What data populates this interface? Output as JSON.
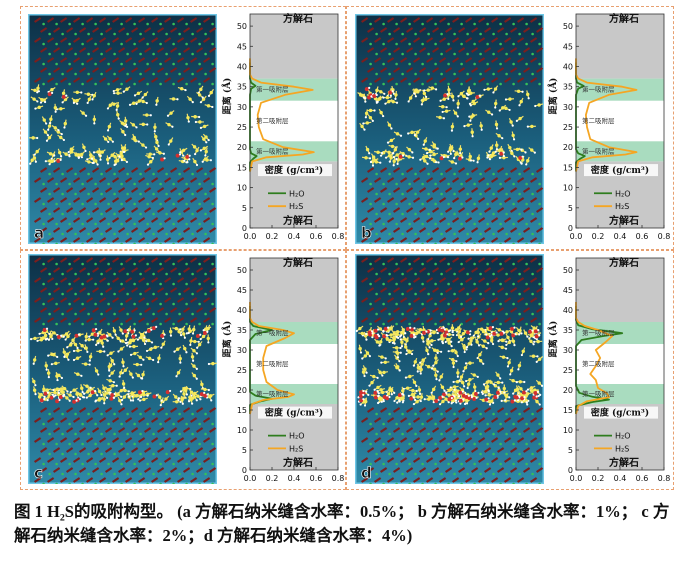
{
  "caption": "图 1 H₂S的吸附构型。 (a 方解石纳米缝含水率：0.5%； b 方解石纳米缝含水率：1%； c 方解石纳米缝含水率：2%；d 方解石纳米缝含水率：4%)",
  "colors": {
    "h2o": "#2e7d1e",
    "h2s": "#f5a623",
    "calcite_region": "#c8c8c8",
    "adsorption_band": "#a9dcbf",
    "middle_band": "#ffffff"
  },
  "labels": {
    "top_mineral": "方解石",
    "bottom_mineral": "方解石",
    "first_layer": "第一吸附层",
    "second_layer": "第二吸附层",
    "ylabel": "距离 (Å)",
    "xlabel": "密度 (g/cm³)"
  },
  "panels": [
    {
      "letter": "a"
    },
    {
      "letter": "b"
    },
    {
      "letter": "c"
    },
    {
      "letter": "d"
    }
  ],
  "chart_data": [
    {
      "type": "line",
      "panel": "a",
      "xlabel": "密度 (g/cm³)",
      "ylabel": "距离 (Å)",
      "xlim": [
        0,
        0.8
      ],
      "ylim": [
        0,
        53
      ],
      "xticks": [
        "0.0",
        "0.2",
        "0.4",
        "0.6",
        "0.8"
      ],
      "yticks": [
        "0",
        "5",
        "10",
        "15",
        "20",
        "25",
        "30",
        "35",
        "40",
        "45",
        "50"
      ],
      "regions": {
        "calcite_bottom": [
          0,
          16.5
        ],
        "calcite_top": [
          37,
          53
        ],
        "first_layer_bottom": [
          16.5,
          21.5
        ],
        "second_layer": [
          21.5,
          31.5
        ],
        "first_layer_top": [
          31.5,
          37
        ]
      },
      "series": [
        {
          "name": "H₂O",
          "points": [
            [
              0,
              14
            ],
            [
              0,
              16.3
            ],
            [
              0.03,
              17.2
            ],
            [
              0.06,
              17.8
            ],
            [
              0.01,
              18.5
            ],
            [
              0,
              19.5
            ],
            [
              0,
              33
            ],
            [
              0.01,
              34.5
            ],
            [
              0.05,
              35.2
            ],
            [
              0.01,
              36
            ],
            [
              0,
              37
            ],
            [
              0,
              41
            ]
          ]
        },
        {
          "name": "H₂S",
          "points": [
            [
              0,
              14
            ],
            [
              0.02,
              16.5
            ],
            [
              0.15,
              17.5
            ],
            [
              0.48,
              18.2
            ],
            [
              0.58,
              18.8
            ],
            [
              0.3,
              20
            ],
            [
              0.12,
              22
            ],
            [
              0.08,
              25
            ],
            [
              0.07,
              28
            ],
            [
              0.1,
              31
            ],
            [
              0.32,
              33
            ],
            [
              0.57,
              34.2
            ],
            [
              0.4,
              35
            ],
            [
              0.1,
              36
            ],
            [
              0.02,
              37
            ],
            [
              0,
              38
            ],
            [
              0,
              42
            ]
          ]
        }
      ]
    },
    {
      "type": "line",
      "panel": "b",
      "xlabel": "密度 (g/cm³)",
      "ylabel": "距离 (Å)",
      "xlim": [
        0,
        0.8
      ],
      "ylim": [
        0,
        53
      ],
      "xticks": [
        "0.0",
        "0.2",
        "0.4",
        "0.6",
        "0.8"
      ],
      "yticks": [
        "0",
        "5",
        "10",
        "15",
        "20",
        "25",
        "30",
        "35",
        "40",
        "45",
        "50"
      ],
      "regions": {
        "calcite_bottom": [
          0,
          16.5
        ],
        "calcite_top": [
          37,
          53
        ],
        "first_layer_bottom": [
          16.5,
          21.5
        ],
        "second_layer": [
          21.5,
          31.5
        ],
        "first_layer_top": [
          31.5,
          37
        ]
      },
      "series": [
        {
          "name": "H₂O",
          "points": [
            [
              0,
              14
            ],
            [
              0,
              16.3
            ],
            [
              0.04,
              17.2
            ],
            [
              0.08,
              17.8
            ],
            [
              0.02,
              18.5
            ],
            [
              0,
              19.5
            ],
            [
              0,
              33
            ],
            [
              0.02,
              34.5
            ],
            [
              0.07,
              35.2
            ],
            [
              0.01,
              36
            ],
            [
              0,
              37
            ],
            [
              0,
              41
            ]
          ]
        },
        {
          "name": "H₂S",
          "points": [
            [
              0,
              14
            ],
            [
              0.02,
              16.5
            ],
            [
              0.15,
              17.5
            ],
            [
              0.45,
              18.2
            ],
            [
              0.55,
              18.8
            ],
            [
              0.3,
              20
            ],
            [
              0.13,
              22
            ],
            [
              0.1,
              25
            ],
            [
              0.09,
              28
            ],
            [
              0.12,
              31
            ],
            [
              0.3,
              33
            ],
            [
              0.55,
              34.2
            ],
            [
              0.42,
              35
            ],
            [
              0.1,
              36
            ],
            [
              0.02,
              37
            ],
            [
              0,
              38
            ],
            [
              0,
              42
            ]
          ]
        }
      ]
    },
    {
      "type": "line",
      "panel": "c",
      "xlabel": "密度 (g/cm³)",
      "ylabel": "距离 (Å)",
      "xlim": [
        0,
        0.8
      ],
      "ylim": [
        0,
        53
      ],
      "xticks": [
        "0.0",
        "0.2",
        "0.4",
        "0.6",
        "0.8"
      ],
      "yticks": [
        "0",
        "5",
        "10",
        "15",
        "20",
        "25",
        "30",
        "35",
        "40",
        "45",
        "50"
      ],
      "regions": {
        "calcite_bottom": [
          0,
          16.5
        ],
        "calcite_top": [
          37,
          53
        ],
        "first_layer_bottom": [
          16.5,
          21.5
        ],
        "second_layer": [
          21.5,
          31.5
        ],
        "first_layer_top": [
          31.5,
          37
        ]
      },
      "series": [
        {
          "name": "H₂O",
          "points": [
            [
              0,
              14
            ],
            [
              0,
              16.3
            ],
            [
              0.1,
              17.2
            ],
            [
              0.2,
              17.8
            ],
            [
              0.05,
              18.6
            ],
            [
              0,
              19.5
            ],
            [
              0,
              32.5
            ],
            [
              0.05,
              34
            ],
            [
              0.2,
              35
            ],
            [
              0.03,
              36
            ],
            [
              0,
              37
            ],
            [
              0,
              41
            ]
          ]
        },
        {
          "name": "H₂S",
          "points": [
            [
              0,
              14
            ],
            [
              0.02,
              16.5
            ],
            [
              0.12,
              17.5
            ],
            [
              0.35,
              18.3
            ],
            [
              0.4,
              18.9
            ],
            [
              0.25,
              20
            ],
            [
              0.15,
              22
            ],
            [
              0.12,
              25
            ],
            [
              0.12,
              28
            ],
            [
              0.15,
              31
            ],
            [
              0.32,
              33
            ],
            [
              0.4,
              34.2
            ],
            [
              0.3,
              35
            ],
            [
              0.08,
              36
            ],
            [
              0.02,
              37
            ],
            [
              0,
              38
            ],
            [
              0,
              42
            ]
          ]
        }
      ]
    },
    {
      "type": "line",
      "panel": "d",
      "xlabel": "密度 (g/cm³)",
      "ylabel": "距离 (Å)",
      "xlim": [
        0,
        0.8
      ],
      "ylim": [
        0,
        53
      ],
      "xticks": [
        "0.0",
        "0.2",
        "0.4",
        "0.6",
        "0.8"
      ],
      "yticks": [
        "0",
        "5",
        "10",
        "15",
        "20",
        "25",
        "30",
        "35",
        "40",
        "45",
        "50"
      ],
      "regions": {
        "calcite_bottom": [
          0,
          16.5
        ],
        "calcite_top": [
          37,
          53
        ],
        "first_layer_bottom": [
          16.5,
          21.5
        ],
        "second_layer": [
          21.5,
          31.5
        ],
        "first_layer_top": [
          31.5,
          37
        ]
      },
      "series": [
        {
          "name": "H₂O",
          "points": [
            [
              0,
              14
            ],
            [
              0,
              16
            ],
            [
              0.15,
              17
            ],
            [
              0.3,
              17.6
            ],
            [
              0.15,
              18.3
            ],
            [
              0.03,
              19.3
            ],
            [
              0,
              21
            ],
            [
              0,
              31
            ],
            [
              0.05,
              32.5
            ],
            [
              0.25,
              33.5
            ],
            [
              0.42,
              34.2
            ],
            [
              0.15,
              35.2
            ],
            [
              0.02,
              36.2
            ],
            [
              0,
              37.5
            ],
            [
              0,
              41
            ]
          ]
        },
        {
          "name": "H₂S",
          "points": [
            [
              0,
              14
            ],
            [
              0.02,
              16
            ],
            [
              0.1,
              17.2
            ],
            [
              0.3,
              18.2
            ],
            [
              0.28,
              19.2
            ],
            [
              0.2,
              20.5
            ],
            [
              0.18,
              22.5
            ],
            [
              0.13,
              24
            ],
            [
              0.18,
              26
            ],
            [
              0.22,
              28
            ],
            [
              0.18,
              30
            ],
            [
              0.27,
              32
            ],
            [
              0.33,
              33.5
            ],
            [
              0.2,
              35
            ],
            [
              0.08,
              36
            ],
            [
              0.02,
              37
            ],
            [
              0,
              38
            ],
            [
              0,
              42
            ]
          ]
        }
      ]
    }
  ]
}
